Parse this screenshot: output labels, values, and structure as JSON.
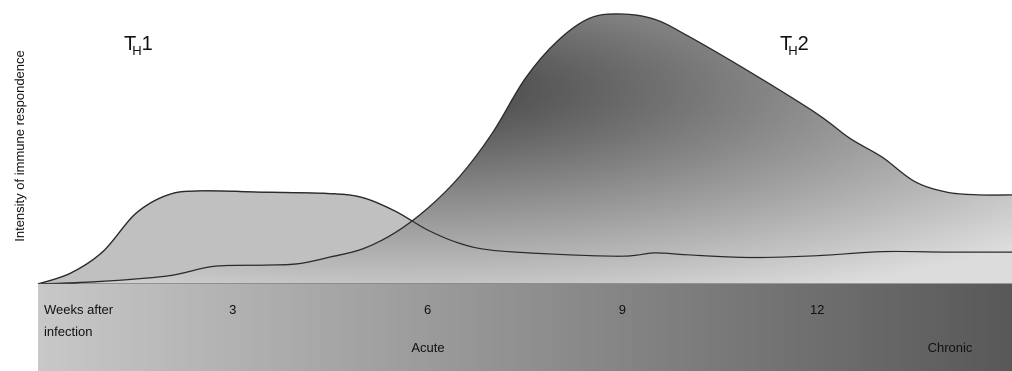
{
  "chart_data": {
    "type": "area",
    "ylabel": "Intensity of immune respondence",
    "xlabel": "Weeks after infection",
    "x_ticks": [
      3,
      6,
      9,
      12
    ],
    "stage_labels": [
      "Acute",
      "Chronic"
    ],
    "xlim": [
      0,
      15
    ],
    "ylim": [
      0,
      1
    ],
    "series": [
      {
        "name": "TH1",
        "name_base": "T",
        "name_sub": "H",
        "name_suffix": "1",
        "color": "#bdbdbd",
        "points": [
          [
            0,
            0.0
          ],
          [
            0.5,
            0.04
          ],
          [
            1.0,
            0.12
          ],
          [
            1.5,
            0.26
          ],
          [
            2.0,
            0.33
          ],
          [
            2.5,
            0.345
          ],
          [
            3.5,
            0.34
          ],
          [
            4.5,
            0.335
          ],
          [
            5.0,
            0.32
          ],
          [
            5.5,
            0.27
          ],
          [
            6.0,
            0.2
          ],
          [
            6.5,
            0.15
          ],
          [
            7.0,
            0.125
          ],
          [
            8.0,
            0.11
          ],
          [
            9.0,
            0.103
          ],
          [
            9.5,
            0.115
          ],
          [
            10.0,
            0.108
          ],
          [
            11.0,
            0.098
          ],
          [
            12.0,
            0.105
          ],
          [
            13.0,
            0.12
          ],
          [
            14.0,
            0.118
          ],
          [
            15.0,
            0.118
          ]
        ]
      },
      {
        "name": "TH2",
        "name_base": "T",
        "name_sub": "H",
        "name_suffix": "2",
        "color": "#555555",
        "points": [
          [
            0,
            0.0
          ],
          [
            1.0,
            0.01
          ],
          [
            2.0,
            0.03
          ],
          [
            2.7,
            0.065
          ],
          [
            3.5,
            0.07
          ],
          [
            4.0,
            0.075
          ],
          [
            4.5,
            0.1
          ],
          [
            5.0,
            0.13
          ],
          [
            5.5,
            0.19
          ],
          [
            6.0,
            0.28
          ],
          [
            6.5,
            0.4
          ],
          [
            7.0,
            0.56
          ],
          [
            7.5,
            0.76
          ],
          [
            8.0,
            0.9
          ],
          [
            8.5,
            0.985
          ],
          [
            9.0,
            1.0
          ],
          [
            9.5,
            0.98
          ],
          [
            10.0,
            0.92
          ],
          [
            11.0,
            0.78
          ],
          [
            12.0,
            0.63
          ],
          [
            12.5,
            0.54
          ],
          [
            13.0,
            0.47
          ],
          [
            13.5,
            0.38
          ],
          [
            14.0,
            0.34
          ],
          [
            14.5,
            0.33
          ],
          [
            15.0,
            0.33
          ]
        ]
      }
    ]
  }
}
